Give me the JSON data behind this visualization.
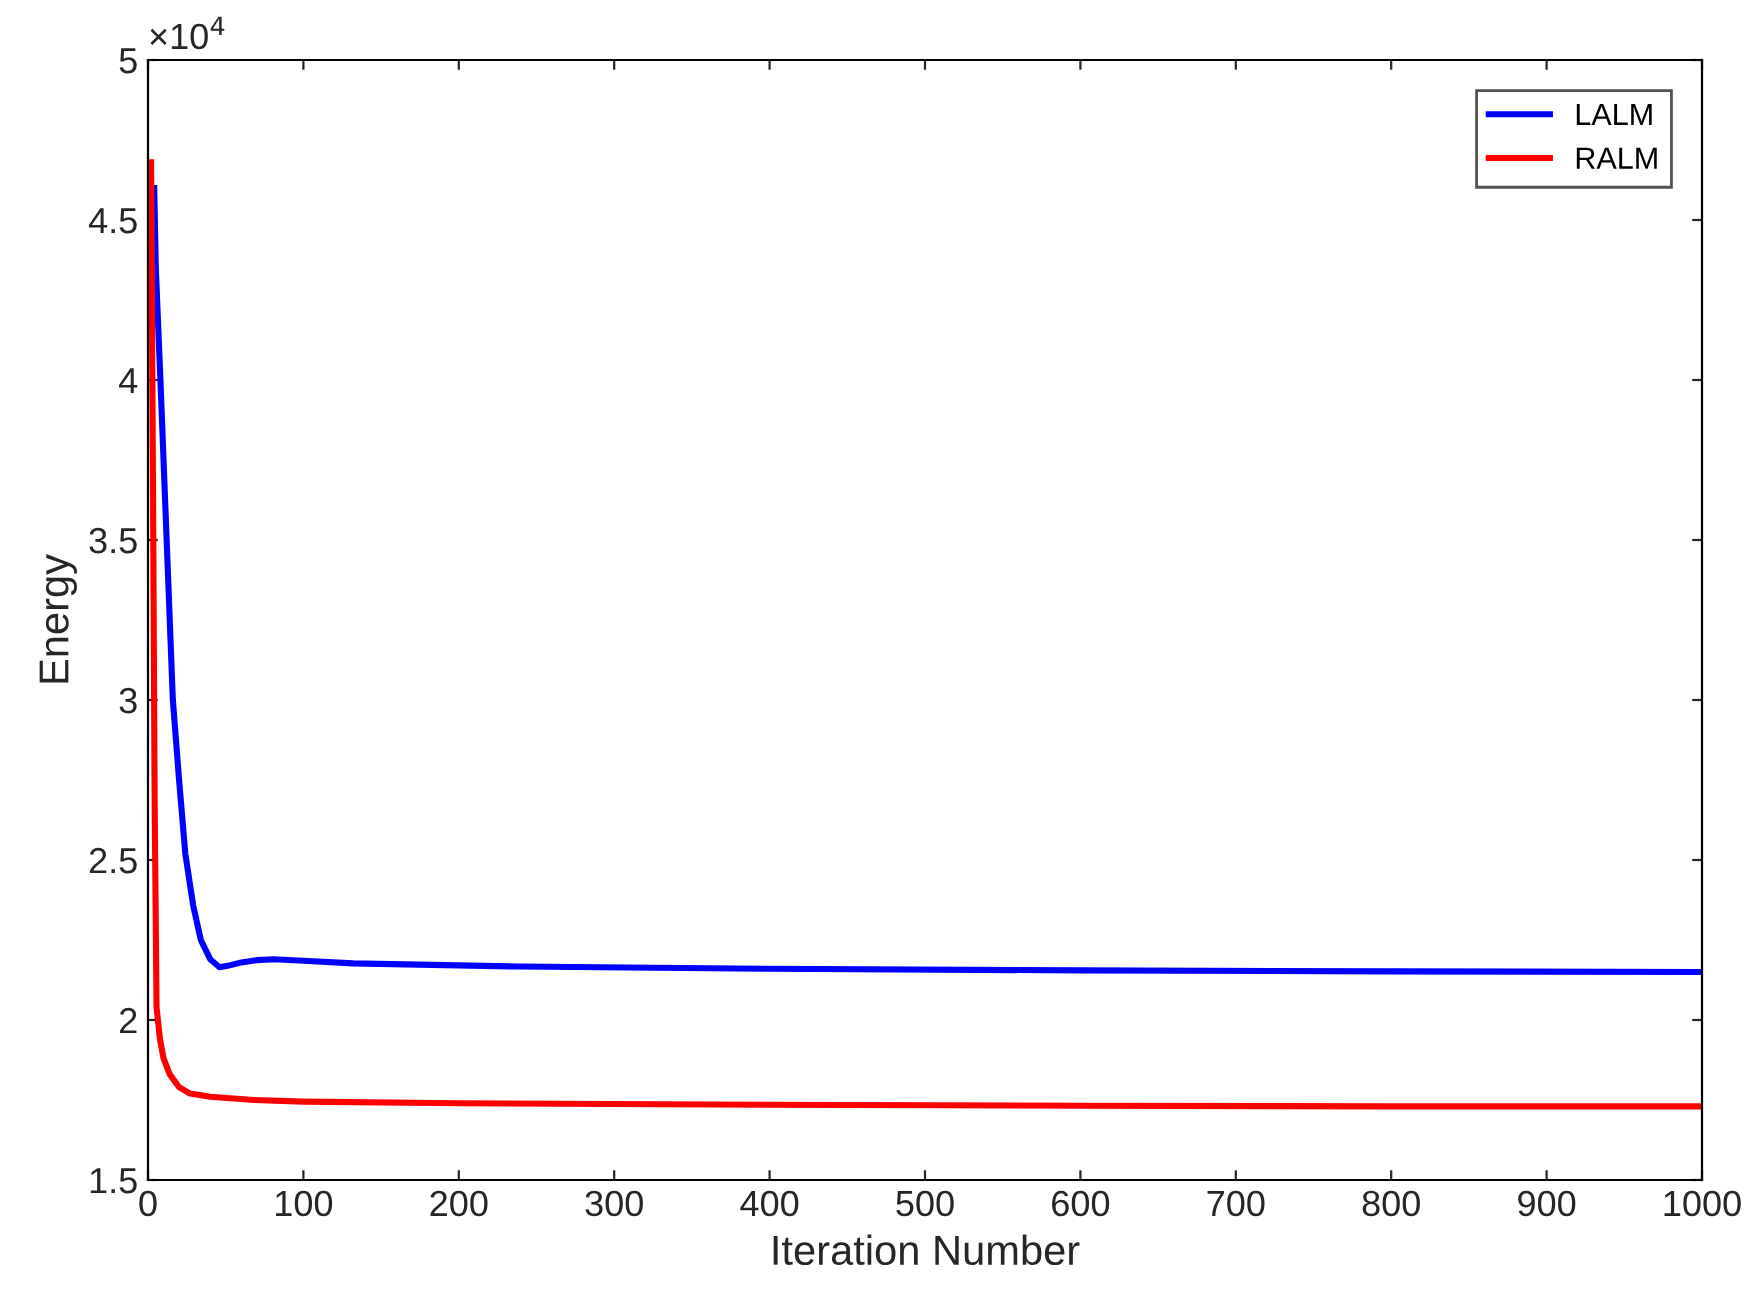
{
  "chart_data": {
    "type": "line",
    "xlabel": "Iteration Number",
    "ylabel": "Energy",
    "annotations": [
      "×10$^{4}$"
    ],
    "xlim": [
      0,
      1000
    ],
    "ylim": [
      1.5,
      5
    ],
    "xticks": [
      0,
      100,
      200,
      300,
      400,
      500,
      600,
      700,
      800,
      900,
      1000
    ],
    "yticks": [
      1.5,
      2,
      2.5,
      3,
      3.5,
      4,
      4.5,
      5
    ],
    "grid": false,
    "legend": "top right",
    "line_style": "solid",
    "marker": "none",
    "series": [
      {
        "name": "LALM",
        "color": "#0000ff",
        "x": [
          4,
          5,
          8,
          12,
          16,
          20,
          24,
          29,
          34,
          40,
          46,
          52,
          60,
          70,
          81,
          100,
          132,
          239,
          400,
          600,
          800,
          1000
        ],
        "values": [
          4.6,
          4.35,
          4.0,
          3.5,
          3.0,
          2.75,
          2.52,
          2.36,
          2.25,
          2.19,
          2.165,
          2.17,
          2.18,
          2.187,
          2.19,
          2.185,
          2.177,
          2.167,
          2.16,
          2.155,
          2.152,
          2.15
        ]
      },
      {
        "name": "RALM",
        "color": "#ff0000",
        "x": [
          2,
          3.4,
          4.3,
          5.5,
          7.7,
          10,
          14,
          20,
          27,
          40,
          68,
          100,
          200,
          400,
          600,
          800,
          1000
        ],
        "values": [
          4.68,
          3.5,
          2.67,
          2.04,
          1.94,
          1.88,
          1.83,
          1.79,
          1.77,
          1.76,
          1.75,
          1.745,
          1.74,
          1.735,
          1.732,
          1.73,
          1.73
        ]
      }
    ]
  }
}
